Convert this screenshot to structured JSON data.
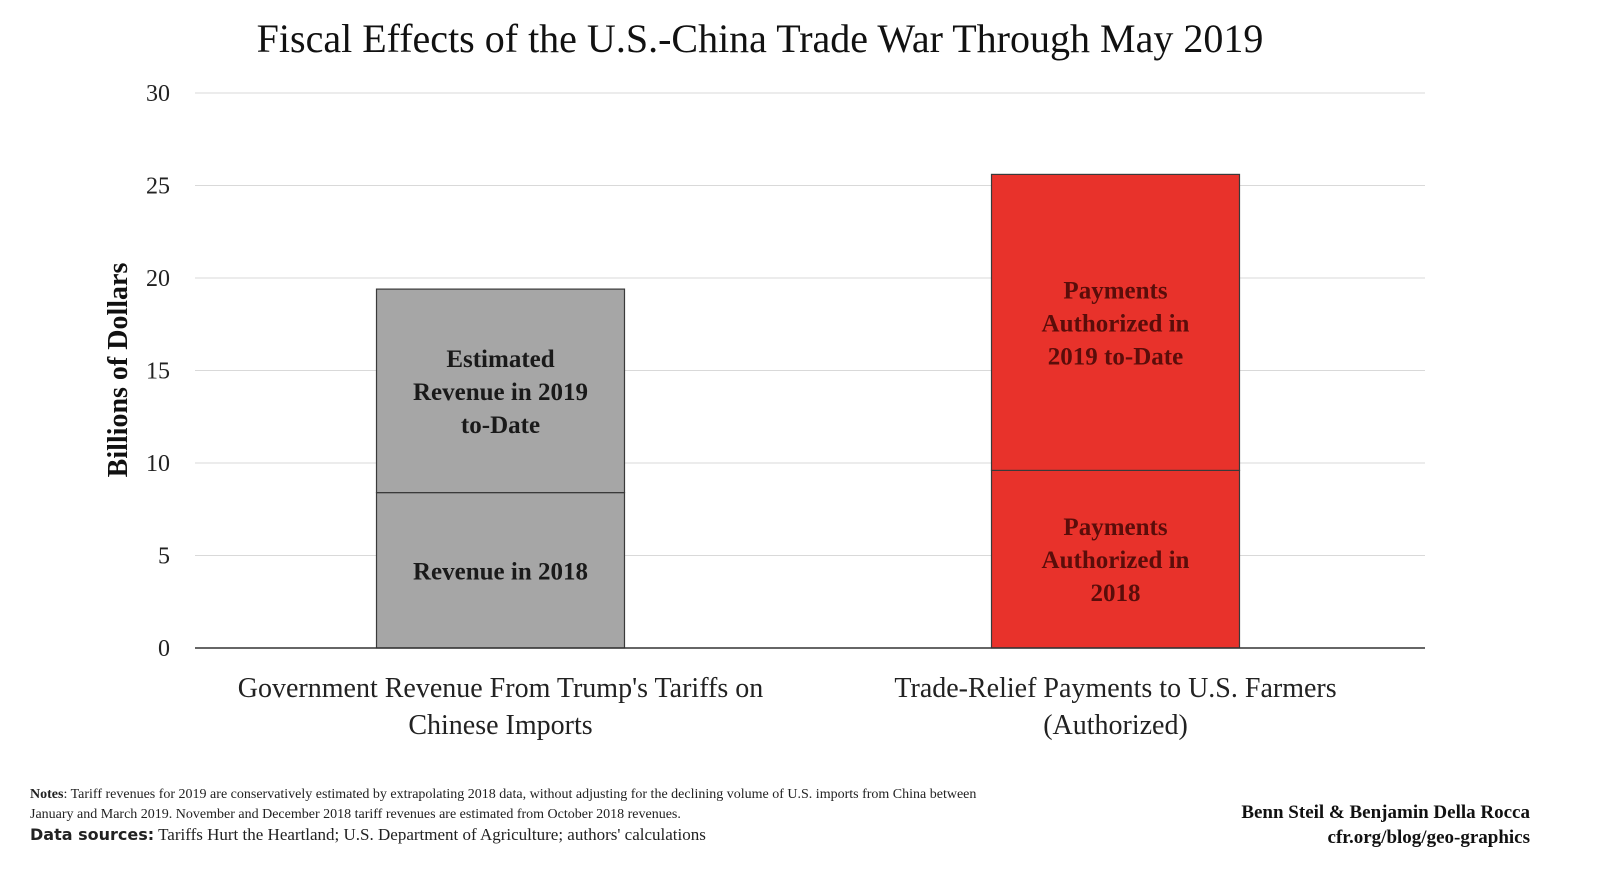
{
  "chart_data": {
    "type": "bar",
    "stacked": true,
    "title": "Fiscal Effects of the U.S.-China Trade War Through May 2019",
    "ylabel": "Billions of Dollars",
    "xlabel": "",
    "ylim": [
      0,
      30
    ],
    "yticks": [
      "0",
      "5",
      "10",
      "15",
      "20",
      "25",
      "30"
    ],
    "grid": true,
    "categories": [
      [
        "Government Revenue From Trump's Tariffs on",
        "Chinese Imports"
      ],
      [
        "Trade-Relief Payments to U.S. Farmers",
        "(Authorized)"
      ]
    ],
    "bars": [
      {
        "name": "Government Revenue From Trump's Tariffs on Chinese Imports",
        "segments": [
          {
            "value": 8.4,
            "color": "#a6a6a6",
            "label": [
              "Revenue in 2018"
            ]
          },
          {
            "value": 11.0,
            "color": "#a6a6a6",
            "label": [
              "Estimated",
              "Revenue in 2019",
              "to-Date"
            ]
          }
        ]
      },
      {
        "name": "Trade-Relief Payments to U.S. Farmers (Authorized)",
        "segments": [
          {
            "value": 9.6,
            "color": "#e8322b",
            "label": [
              "Payments",
              "Authorized in",
              "2018"
            ]
          },
          {
            "value": 16.0,
            "color": "#e8322b",
            "label": [
              "Payments",
              "Authorized in",
              "2019 to-Date"
            ]
          }
        ]
      }
    ]
  },
  "notes": {
    "label": "Notes",
    "text": ": Tariff revenues for 2019 are conservatively estimated by extrapolating 2018 data, without adjusting for  the declining volume of U.S. imports from China between January and March 2019. November and December 2018 tariff revenues are estimated from October 2018 revenues."
  },
  "sources": {
    "label": "Data sources:",
    "text": " Tariffs Hurt the Heartland; U.S. Department of Agriculture; authors' calculations"
  },
  "credit": {
    "authors": "Benn Steil & Benjamin Della Rocca",
    "site": "cfr.org/blog/geo-graphics"
  }
}
